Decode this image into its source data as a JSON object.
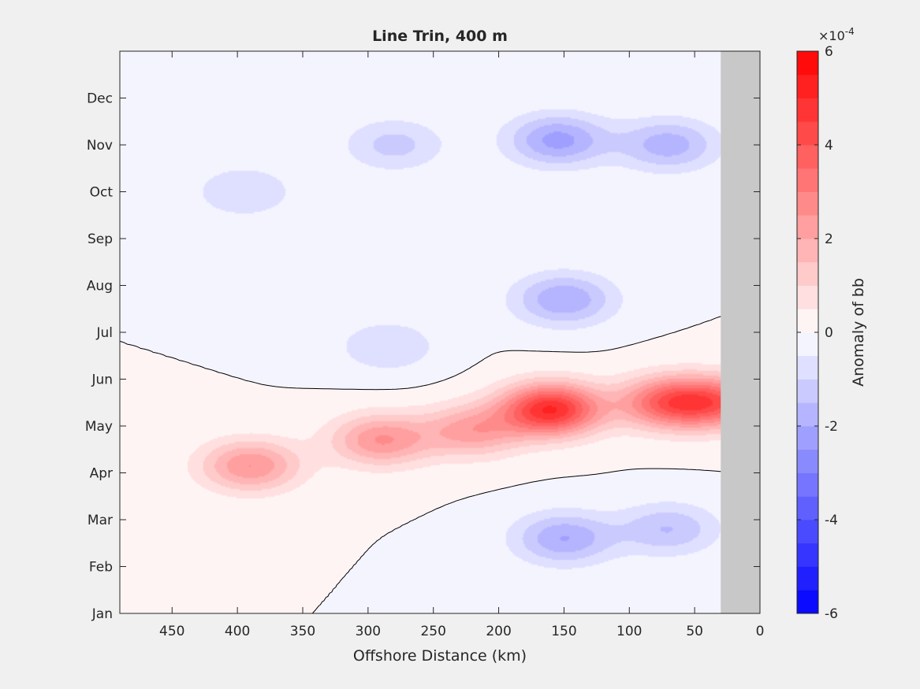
{
  "chart_data": {
    "type": "heatmap",
    "title": "Line Trin, 400 m",
    "xlabel": "Offshore Distance (km)",
    "ylabel": "",
    "xlim": [
      490,
      0
    ],
    "x_reversed": true,
    "xticks": [
      450,
      400,
      350,
      300,
      250,
      200,
      150,
      100,
      50,
      0
    ],
    "yticks": [
      "Jan",
      "Feb",
      "Mar",
      "Apr",
      "May",
      "Jun",
      "Jul",
      "Aug",
      "Sep",
      "Oct",
      "Nov",
      "Dec"
    ],
    "colorbar": {
      "label": "Anomaly of bb",
      "exponent": "×10",
      "exponent_power": "-4",
      "clim": [
        -6,
        6
      ],
      "levels": 24,
      "ticks": [
        -6,
        -4,
        -2,
        0,
        2,
        4,
        6
      ],
      "tick_labels": [
        "-6",
        "-4",
        "-2",
        "0",
        "2",
        "4",
        "6"
      ]
    },
    "no_data_x_range": [
      30,
      0
    ],
    "no_data_color": "#c8c8c8",
    "colors": {
      "positive": "#ff0000",
      "negative": "#0000ff",
      "zero": "#ffffff"
    },
    "features": [
      {
        "type": "max",
        "x": 160,
        "month": 4.35,
        "value": 5.0
      },
      {
        "type": "max",
        "x": 70,
        "month": 4.5,
        "value": 3.5
      },
      {
        "type": "max",
        "x": 30,
        "month": 4.5,
        "value": 3.0
      },
      {
        "type": "max",
        "x": 290,
        "month": 3.7,
        "value": 2.5
      },
      {
        "type": "max",
        "x": 390,
        "month": 3.15,
        "value": 2.5
      },
      {
        "type": "max",
        "x": 220,
        "month": 3.9,
        "value": 2.2
      },
      {
        "type": "min",
        "x": 155,
        "month": 10.1,
        "value": -2.2
      },
      {
        "type": "min",
        "x": 70,
        "month": 10.0,
        "value": -1.8
      },
      {
        "type": "min",
        "x": 150,
        "month": 6.7,
        "value": -2.0
      },
      {
        "type": "min",
        "x": 150,
        "month": 1.6,
        "value": -2.0
      },
      {
        "type": "min",
        "x": 70,
        "month": 1.8,
        "value": -1.5
      },
      {
        "type": "min",
        "x": 280,
        "month": 10.0,
        "value": -1.2
      },
      {
        "type": "min",
        "x": 395,
        "month": 9.0,
        "value": -1.0
      },
      {
        "type": "min",
        "x": 285,
        "month": 5.7,
        "value": -1.0
      }
    ]
  }
}
